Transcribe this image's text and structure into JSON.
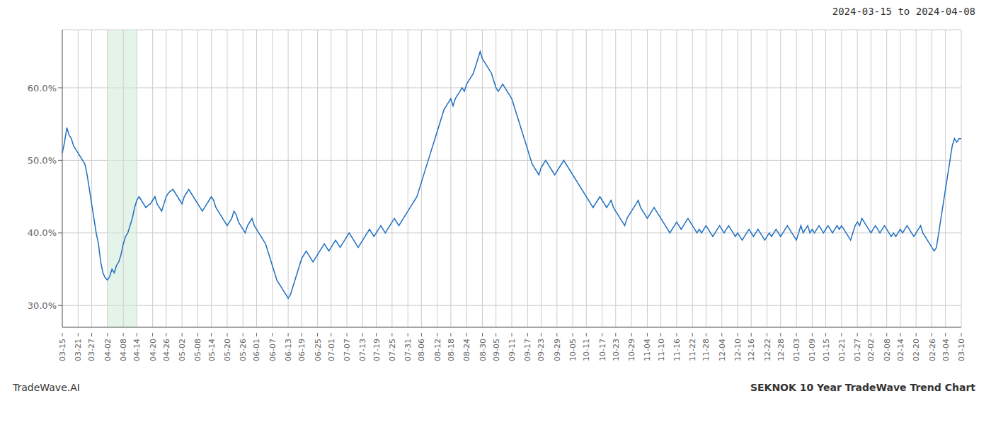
{
  "chart_data": {
    "type": "line",
    "title": "SEKNOK 10 Year TradeWave Trend Chart",
    "subtitle": "2024-03-15 to 2024-04-08",
    "annotations": [
      "TradeWave.AI"
    ],
    "color": "#1f6fbf",
    "grid": true,
    "ylim": [
      27.0,
      68.0
    ],
    "yticks": [
      {
        "value": 30.0,
        "label": "30.0%"
      },
      {
        "value": 40.0,
        "label": "40.0%"
      },
      {
        "value": 50.0,
        "label": "50.0%"
      },
      {
        "value": 60.0,
        "label": "60.0%"
      }
    ],
    "highlight": {
      "start": "04-02",
      "end": "04-14",
      "color": "#d4edda"
    },
    "categories": [
      "03-15",
      null,
      null,
      null,
      null,
      null,
      null,
      "03-21",
      null,
      null,
      null,
      null,
      null,
      "03-27",
      null,
      null,
      null,
      null,
      null,
      null,
      "04-02",
      null,
      null,
      null,
      null,
      null,
      null,
      "04-08",
      null,
      null,
      null,
      null,
      null,
      "04-14",
      null,
      null,
      null,
      null,
      null,
      null,
      "04-20",
      null,
      null,
      null,
      null,
      null,
      "04-26",
      null,
      null,
      null,
      null,
      null,
      null,
      "05-02",
      null,
      null,
      null,
      null,
      null,
      null,
      "05-08",
      null,
      null,
      null,
      null,
      null,
      "05-14",
      null,
      null,
      null,
      null,
      null,
      null,
      "05-20",
      null,
      null,
      null,
      null,
      null,
      null,
      "05-26",
      null,
      null,
      null,
      null,
      null,
      "06-01",
      null,
      null,
      null,
      null,
      null,
      null,
      "06-07",
      null,
      null,
      null,
      null,
      null,
      null,
      "06-13",
      null,
      null,
      null,
      null,
      null,
      "06-19",
      null,
      null,
      null,
      null,
      null,
      null,
      "06-25",
      null,
      null,
      null,
      null,
      null,
      "07-01",
      null,
      null,
      null,
      null,
      null,
      null,
      "07-07",
      null,
      null,
      null,
      null,
      null,
      null,
      "07-13",
      null,
      null,
      null,
      null,
      null,
      "07-19",
      null,
      null,
      null,
      null,
      null,
      null,
      "07-25",
      null,
      null,
      null,
      null,
      null,
      null,
      "07-31",
      null,
      null,
      null,
      null,
      null,
      "08-06",
      null,
      null,
      null,
      null,
      null,
      null,
      "08-12",
      null,
      null,
      null,
      null,
      null,
      "08-18",
      null,
      null,
      null,
      null,
      null,
      null,
      "08-24",
      null,
      null,
      null,
      null,
      null,
      null,
      "08-30",
      null,
      null,
      null,
      null,
      null,
      "09-05",
      null,
      null,
      null,
      null,
      null,
      null,
      "09-11",
      null,
      null,
      null,
      null,
      null,
      null,
      "09-17",
      null,
      null,
      null,
      null,
      null,
      "09-23",
      null,
      null,
      null,
      null,
      null,
      null,
      "09-29",
      null,
      null,
      null,
      null,
      null,
      null,
      "10-05",
      null,
      null,
      null,
      null,
      null,
      "10-11",
      null,
      null,
      null,
      null,
      null,
      null,
      "10-17",
      null,
      null,
      null,
      null,
      null,
      "10-23",
      null,
      null,
      null,
      null,
      null,
      null,
      "10-29",
      null,
      null,
      null,
      null,
      null,
      null,
      "11-04",
      null,
      null,
      null,
      null,
      null,
      "11-10",
      null,
      null,
      null,
      null,
      null,
      null,
      "11-16",
      null,
      null,
      null,
      null,
      null,
      null,
      "11-22",
      null,
      null,
      null,
      null,
      null,
      "11-28",
      null,
      null,
      null,
      null,
      null,
      null,
      "12-04",
      null,
      null,
      null,
      null,
      null,
      null,
      "12-10",
      null,
      null,
      null,
      null,
      null,
      "12-16",
      null,
      null,
      null,
      null,
      null,
      null,
      "12-22",
      null,
      null,
      null,
      null,
      null,
      "12-28",
      null,
      null,
      null,
      null,
      null,
      null,
      "01-03",
      null,
      null,
      null,
      null,
      null,
      null,
      "01-09",
      null,
      null,
      null,
      null,
      null,
      "01-15",
      null,
      null,
      null,
      null,
      null,
      null,
      "01-21",
      null,
      null,
      null,
      null,
      null,
      null,
      "01-27",
      null,
      null,
      null,
      null,
      null,
      "02-02",
      null,
      null,
      null,
      null,
      null,
      null,
      "02-08",
      null,
      null,
      null,
      null,
      null,
      "02-14",
      null,
      null,
      null,
      null,
      null,
      null,
      "02-20",
      null,
      null,
      null,
      null,
      null,
      null,
      "02-26",
      null,
      null,
      null,
      null,
      null,
      "03-04",
      null,
      null,
      null,
      null,
      null,
      null,
      "03-10"
    ],
    "values": [
      51.0,
      52.5,
      54.5,
      53.5,
      53.0,
      52.0,
      51.5,
      51.0,
      50.5,
      50.0,
      49.5,
      48.0,
      46.0,
      44.0,
      42.0,
      40.0,
      38.5,
      36.0,
      34.5,
      33.8,
      33.5,
      34.0,
      35.0,
      34.5,
      35.5,
      36.0,
      37.0,
      38.5,
      39.5,
      40.0,
      41.0,
      42.0,
      43.5,
      44.5,
      45.0,
      44.5,
      44.0,
      43.5,
      43.8,
      44.0,
      44.5,
      45.0,
      44.0,
      43.5,
      43.0,
      44.0,
      45.0,
      45.5,
      45.8,
      46.0,
      45.5,
      45.0,
      44.5,
      44.0,
      45.0,
      45.5,
      46.0,
      45.5,
      45.0,
      44.5,
      44.0,
      43.5,
      43.0,
      43.5,
      44.0,
      44.5,
      45.0,
      44.5,
      43.5,
      43.0,
      42.5,
      42.0,
      41.5,
      41.0,
      41.5,
      42.0,
      43.0,
      42.5,
      41.5,
      41.0,
      40.5,
      40.0,
      41.0,
      41.5,
      42.0,
      41.0,
      40.5,
      40.0,
      39.5,
      39.0,
      38.5,
      37.5,
      36.5,
      35.5,
      34.5,
      33.5,
      33.0,
      32.5,
      32.0,
      31.5,
      31.0,
      31.5,
      32.5,
      33.5,
      34.5,
      35.5,
      36.5,
      37.0,
      37.5,
      37.0,
      36.5,
      36.0,
      36.5,
      37.0,
      37.5,
      38.0,
      38.5,
      38.0,
      37.5,
      38.0,
      38.5,
      39.0,
      38.5,
      38.0,
      38.5,
      39.0,
      39.5,
      40.0,
      39.5,
      39.0,
      38.5,
      38.0,
      38.5,
      39.0,
      39.5,
      40.0,
      40.5,
      40.0,
      39.5,
      40.0,
      40.5,
      41.0,
      40.5,
      40.0,
      40.5,
      41.0,
      41.5,
      42.0,
      41.5,
      41.0,
      41.5,
      42.0,
      42.5,
      43.0,
      43.5,
      44.0,
      44.5,
      45.0,
      46.0,
      47.0,
      48.0,
      49.0,
      50.0,
      51.0,
      52.0,
      53.0,
      54.0,
      55.0,
      56.0,
      57.0,
      57.5,
      58.0,
      58.5,
      57.5,
      58.5,
      59.0,
      59.5,
      60.0,
      59.5,
      60.5,
      61.0,
      61.5,
      62.0,
      63.0,
      64.0,
      65.0,
      64.0,
      63.5,
      63.0,
      62.5,
      62.0,
      61.0,
      60.0,
      59.5,
      60.0,
      60.5,
      60.0,
      59.5,
      59.0,
      58.5,
      57.5,
      56.5,
      55.5,
      54.5,
      53.5,
      52.5,
      51.5,
      50.5,
      49.5,
      49.0,
      48.5,
      48.0,
      49.0,
      49.5,
      50.0,
      49.5,
      49.0,
      48.5,
      48.0,
      48.5,
      49.0,
      49.5,
      50.0,
      49.5,
      49.0,
      48.5,
      48.0,
      47.5,
      47.0,
      46.5,
      46.0,
      45.5,
      45.0,
      44.5,
      44.0,
      43.5,
      44.0,
      44.5,
      45.0,
      44.5,
      44.0,
      43.5,
      44.0,
      44.5,
      43.5,
      43.0,
      42.5,
      42.0,
      41.5,
      41.0,
      42.0,
      42.5,
      43.0,
      43.5,
      44.0,
      44.5,
      43.5,
      43.0,
      42.5,
      42.0,
      42.5,
      43.0,
      43.5,
      43.0,
      42.5,
      42.0,
      41.5,
      41.0,
      40.5,
      40.0,
      40.5,
      41.0,
      41.5,
      41.0,
      40.5,
      41.0,
      41.5,
      42.0,
      41.5,
      41.0,
      40.5,
      40.0,
      40.5,
      40.0,
      40.5,
      41.0,
      40.5,
      40.0,
      39.5,
      40.0,
      40.5,
      41.0,
      40.5,
      40.0,
      40.5,
      41.0,
      40.5,
      40.0,
      39.5,
      40.0,
      39.5,
      39.0,
      39.5,
      40.0,
      40.5,
      40.0,
      39.5,
      40.0,
      40.5,
      40.0,
      39.5,
      39.0,
      39.5,
      40.0,
      39.5,
      40.0,
      40.5,
      40.0,
      39.5,
      40.0,
      40.5,
      41.0,
      40.5,
      40.0,
      39.5,
      39.0,
      40.0,
      41.0,
      40.0,
      40.5,
      41.0,
      40.0,
      40.5,
      40.0,
      40.5,
      41.0,
      40.5,
      40.0,
      40.5,
      41.0,
      40.5,
      40.0,
      40.5,
      41.0,
      40.5,
      41.0,
      40.5,
      40.0,
      39.5,
      39.0,
      40.0,
      41.0,
      41.5,
      41.0,
      42.0,
      41.5,
      41.0,
      40.5,
      40.0,
      40.5,
      41.0,
      40.5,
      40.0,
      40.5,
      41.0,
      40.5,
      40.0,
      39.5,
      40.0,
      39.5,
      40.0,
      40.5,
      40.0,
      40.5,
      41.0,
      40.5,
      40.0,
      39.5,
      40.0,
      40.5,
      41.0,
      40.0,
      39.5,
      39.0,
      38.5,
      38.0,
      37.5,
      38.0,
      40.0,
      42.0,
      44.0,
      46.0,
      48.0,
      50.0,
      52.0,
      53.0,
      52.5,
      53.0,
      53.0
    ]
  }
}
